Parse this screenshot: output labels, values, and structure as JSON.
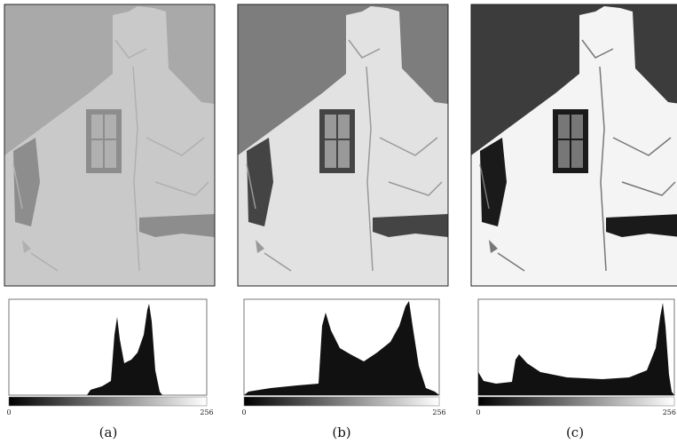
{
  "panels": [
    {
      "axis_min": "0",
      "axis_max": "256",
      "caption": "(a)"
    },
    {
      "axis_min": "0",
      "axis_max": "256",
      "caption": "(b)"
    },
    {
      "axis_min": "0",
      "axis_max": "256",
      "caption": "(c)"
    }
  ]
}
